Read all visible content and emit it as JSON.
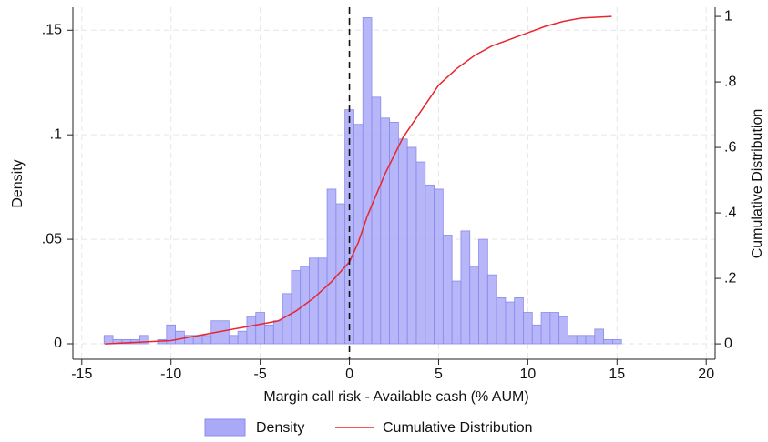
{
  "chart_data": {
    "type": "histogram",
    "x_label": "Margin call risk - Available cash (% AUM)",
    "y_label": "Density",
    "y2_label": "Cumulative Distribution",
    "bins": [
      -13.75,
      -13.25,
      -12.75,
      -12.25,
      -11.75,
      -11.25,
      -10.75,
      -10.25,
      -9.75,
      -9.25,
      -8.75,
      -8.25,
      -7.75,
      -7.25,
      -6.75,
      -6.25,
      -5.75,
      -5.25,
      -4.75,
      -4.25,
      -3.75,
      -3.25,
      -2.75,
      -2.25,
      -1.75,
      -1.25,
      -0.75,
      -0.25,
      0.25,
      0.75,
      1.25,
      1.75,
      2.25,
      2.75,
      3.25,
      3.75,
      4.25,
      4.75,
      5.25,
      5.75,
      6.25,
      6.75,
      7.25,
      7.75,
      8.25,
      8.75,
      9.25,
      9.75,
      10.25,
      10.75,
      11.25,
      11.75,
      12.25,
      12.75,
      13.25,
      13.75,
      14.25,
      14.75,
      15.25
    ],
    "series": [
      {
        "name": "Density",
        "color": "#a9a9f7",
        "stroke": "#8a8aee",
        "values": [
          0.004,
          0.002,
          0.002,
          0.002,
          0.004,
          0,
          0.002,
          0.009,
          0.006,
          0.004,
          0.004,
          0.004,
          0.011,
          0.011,
          0.004,
          0.006,
          0.013,
          0.015,
          0.009,
          0.011,
          0.024,
          0.035,
          0.037,
          0.041,
          0.041,
          0.074,
          0.067,
          0.112,
          0.105,
          0.156,
          0.118,
          0.108,
          0.106,
          0.098,
          0.094,
          0.087,
          0.076,
          0.074,
          0.052,
          0.03,
          0.054,
          0.037,
          0.05,
          0.033,
          0.022,
          0.02,
          0.022,
          0.015,
          0.009,
          0.015,
          0.015,
          0.013,
          0.004,
          0.004,
          0.004,
          0.007,
          0.002,
          0.002
        ]
      },
      {
        "name": "Cumulative Distribution",
        "type": "line",
        "color": "#e8262e",
        "axis": "y2",
        "x": [
          -13.7,
          -10,
          -8,
          -6,
          -5,
          -4,
          -3,
          -2,
          -1,
          0,
          0.5,
          1,
          2,
          3,
          4,
          5,
          6,
          7,
          8,
          9,
          10,
          11,
          12,
          13,
          14.7
        ],
        "values": [
          0,
          0.01,
          0.03,
          0.05,
          0.06,
          0.07,
          0.1,
          0.14,
          0.19,
          0.25,
          0.31,
          0.39,
          0.52,
          0.63,
          0.71,
          0.79,
          0.84,
          0.88,
          0.91,
          0.93,
          0.95,
          0.97,
          0.985,
          0.995,
          1
        ]
      }
    ],
    "reference_line_x": 0,
    "xlim": [
      -15.5,
      20.5
    ],
    "ylim": [
      -0.0074,
      0.161
    ],
    "y2lim": [
      -0.047,
      1.028
    ],
    "xticks": [
      -15,
      -10,
      -5,
      0,
      5,
      10,
      15,
      20
    ],
    "yticks": [
      0,
      {
        "value": 0.05,
        "label": ".05"
      },
      {
        "value": 0.1,
        "label": ".1"
      },
      {
        "value": 0.15,
        "label": ".15"
      }
    ],
    "y2ticks": [
      0,
      {
        "value": 0.2,
        "label": ".2"
      },
      {
        "value": 0.4,
        "label": ".4"
      },
      {
        "value": 0.6,
        "label": ".6"
      },
      {
        "value": 0.8,
        "label": ".8"
      },
      1
    ],
    "grid": true
  }
}
